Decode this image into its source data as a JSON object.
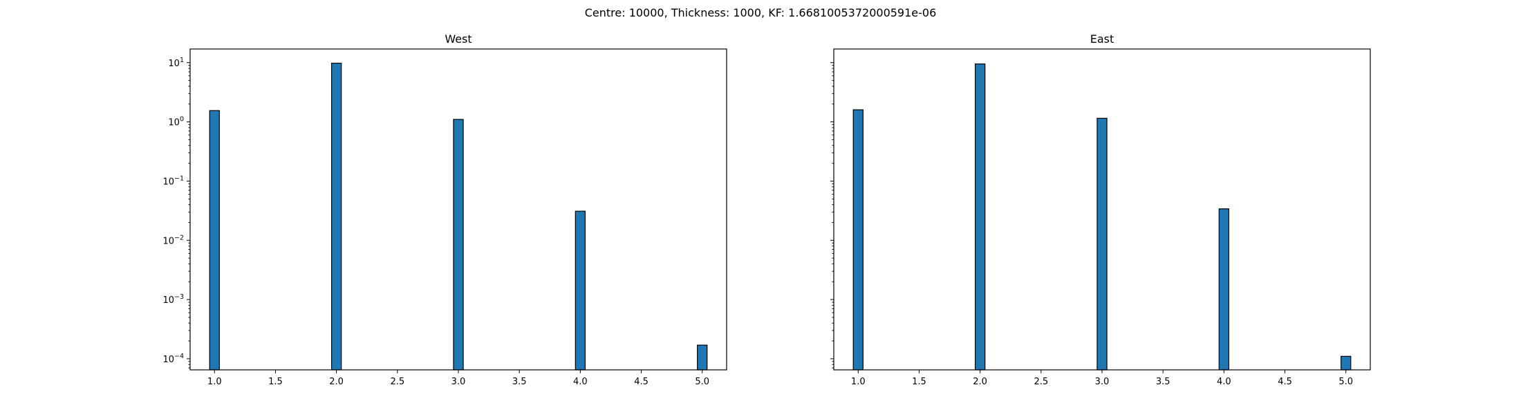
{
  "suptitle": "Centre: 10000, Thickness: 1000, KF: 1.6681005372000591e-06",
  "chart_data": [
    {
      "type": "bar",
      "title": "West",
      "xlabel": "",
      "ylabel": "",
      "yscale": "log",
      "xlim": [
        0.8,
        5.2
      ],
      "ylim": [
        6.5e-05,
        17
      ],
      "bar_color": "#1f77b4",
      "edge_color": "#000000",
      "x": [
        1.0,
        2.0,
        3.0,
        4.0,
        5.0
      ],
      "values": [
        1.55,
        9.8,
        1.1,
        0.031,
        0.00017
      ],
      "x_ticks": [
        "1.0",
        "1.5",
        "2.0",
        "2.5",
        "3.0",
        "3.5",
        "4.0",
        "4.5",
        "5.0"
      ],
      "y_ticks": [
        {
          "base": "10",
          "exp": "1"
        },
        {
          "base": "10",
          "exp": "0"
        },
        {
          "base": "10",
          "exp": "−1"
        },
        {
          "base": "10",
          "exp": "−2"
        },
        {
          "base": "10",
          "exp": "−3"
        },
        {
          "base": "10",
          "exp": "−4"
        }
      ],
      "grid": false
    },
    {
      "type": "bar",
      "title": "East",
      "xlabel": "",
      "ylabel": "",
      "yscale": "log",
      "xlim": [
        0.8,
        5.2
      ],
      "ylim": [
        6.5e-05,
        17
      ],
      "bar_color": "#1f77b4",
      "edge_color": "#000000",
      "x": [
        1.0,
        2.0,
        3.0,
        4.0,
        5.0
      ],
      "values": [
        1.6,
        9.5,
        1.15,
        0.034,
        0.00011
      ],
      "x_ticks": [
        "1.0",
        "1.5",
        "2.0",
        "2.5",
        "3.0",
        "3.5",
        "4.0",
        "4.5",
        "5.0"
      ],
      "y_ticks": [],
      "grid": false
    }
  ]
}
